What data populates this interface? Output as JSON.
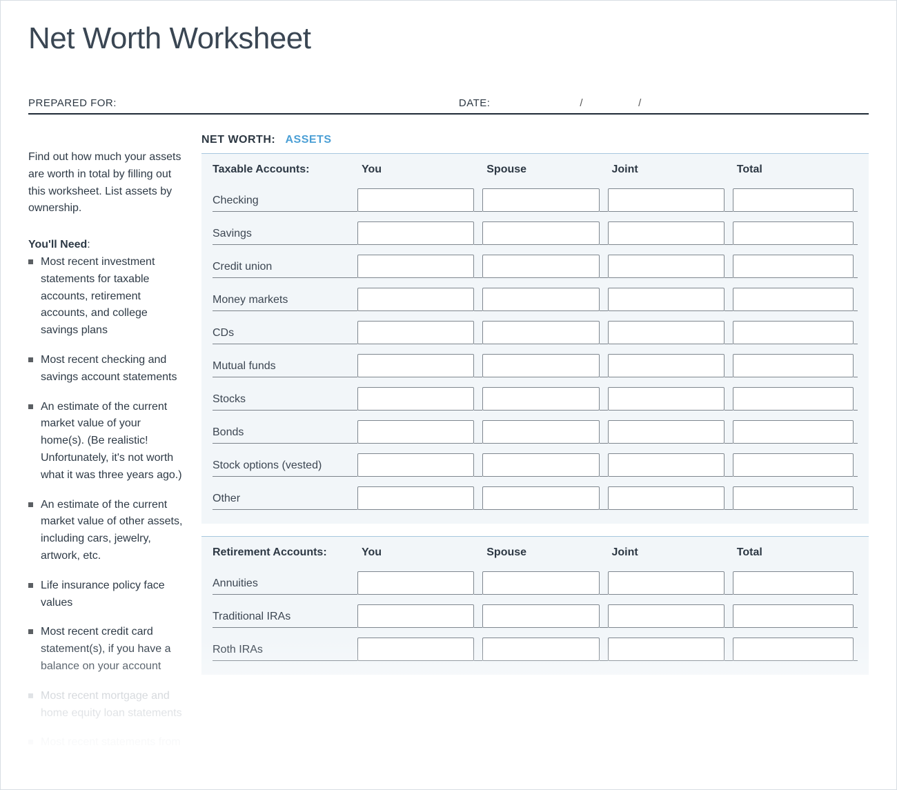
{
  "title": "Net Worth Worksheet",
  "meta": {
    "prepared_for_label": "PREPARED FOR:",
    "date_label": "DATE:",
    "date_sep": "/"
  },
  "intro": "Find out how much your assets are worth in total by filling out this worksheet. List assets by ownership.",
  "need_title": "You'll Need",
  "need_items": [
    {
      "text": "Most recent investment statements for taxable accounts, retirement accounts, and college savings plans",
      "fade": "none"
    },
    {
      "text": "Most recent checking and savings account statements",
      "fade": "none"
    },
    {
      "text": "An estimate of the current market value of your home(s). (Be realistic! Unfortunately, it's not worth what it was three years ago.)",
      "fade": "none"
    },
    {
      "text": "An estimate of the current market value of other assets, including cars, jewelry, artwork, etc.",
      "fade": "none"
    },
    {
      "text": "Life insurance policy face values",
      "fade": "none"
    },
    {
      "text": "Most recent credit card statement(s), if you have a balance on your account",
      "fade": "none"
    },
    {
      "text": "Most recent mortgage and home equity loan statements",
      "fade": "faded"
    },
    {
      "text": "Most recent statements from",
      "fade": "faded2"
    }
  ],
  "section": {
    "prefix": "NET WORTH:",
    "accent": "ASSETS"
  },
  "columns": [
    "You",
    "Spouse",
    "Joint",
    "Total"
  ],
  "blocks": [
    {
      "title": "Taxable Accounts:",
      "rows": [
        "Checking",
        "Savings",
        "Credit union",
        "Money markets",
        "CDs",
        "Mutual funds",
        "Stocks",
        "Bonds",
        "Stock options (vested)",
        "Other"
      ]
    },
    {
      "title": "Retirement Accounts:",
      "rows": [
        "Annuities",
        "Traditional IRAs",
        "Roth IRAs"
      ]
    }
  ],
  "colors": {
    "accent": "#4b9fd5",
    "block_bg": "#f2f6f9",
    "block_border_top": "#a7c7de",
    "line": "#7b828a",
    "text": "#2d3844"
  }
}
